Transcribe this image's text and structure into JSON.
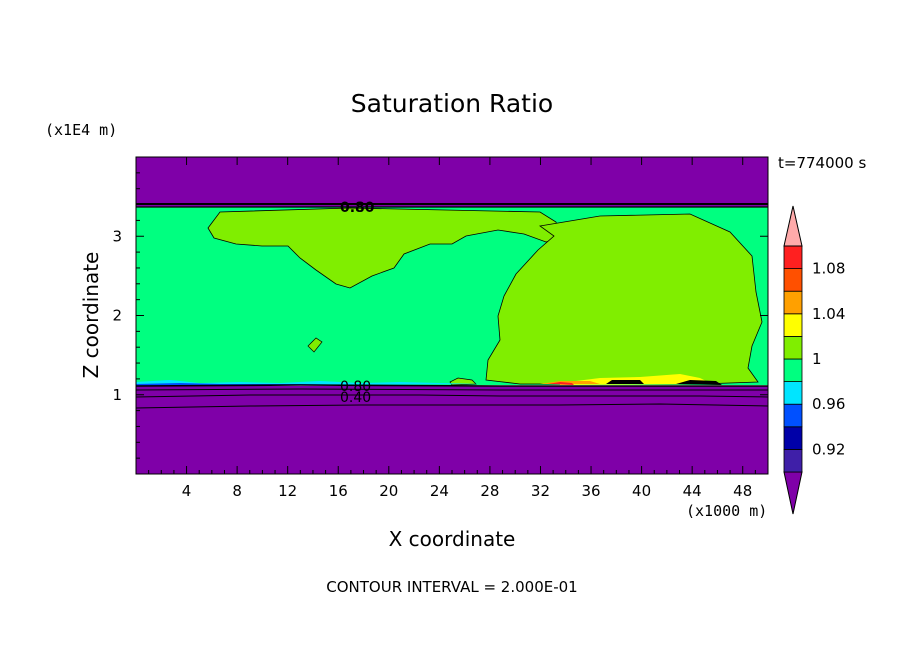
{
  "chart_data": {
    "type": "contour",
    "title": "Saturation Ratio",
    "xlabel": "X coordinate",
    "ylabel": "Z coordinate",
    "x_unit": "(x1000 m)",
    "y_unit": "(x1E4 m)",
    "time_label": "t=774000 s",
    "footer": "CONTOUR INTERVAL = 2.000E-01",
    "xlim": [
      0,
      50
    ],
    "ylim": [
      0,
      4
    ],
    "x_ticks": [
      "4",
      "8",
      "12",
      "16",
      "20",
      "24",
      "28",
      "32",
      "36",
      "40",
      "44",
      "48"
    ],
    "y_ticks": [
      "1",
      "2",
      "3"
    ],
    "contour_labels": [
      "0.80",
      "0.80",
      "0.40"
    ],
    "colorbar": {
      "levels": [
        0.9,
        0.92,
        0.94,
        0.96,
        0.98,
        1.0,
        1.02,
        1.04,
        1.06,
        1.08,
        1.1
      ],
      "tick_labels": [
        "0.92",
        "0.96",
        "1",
        "1.04",
        "1.08"
      ],
      "colors": [
        "#7f00a8",
        "#3f1fa8",
        "#0000a8",
        "#0050ff",
        "#00e5ff",
        "#00ff80",
        "#80ee00",
        "#ffff00",
        "#ffa000",
        "#ff5000",
        "#ff2020",
        "#ffaaaa"
      ],
      "extend": "both"
    },
    "regions": {
      "low_value_color": "#7f00a8",
      "band_value_color": "#00ff80",
      "high_value_color": "#80ee00"
    }
  }
}
